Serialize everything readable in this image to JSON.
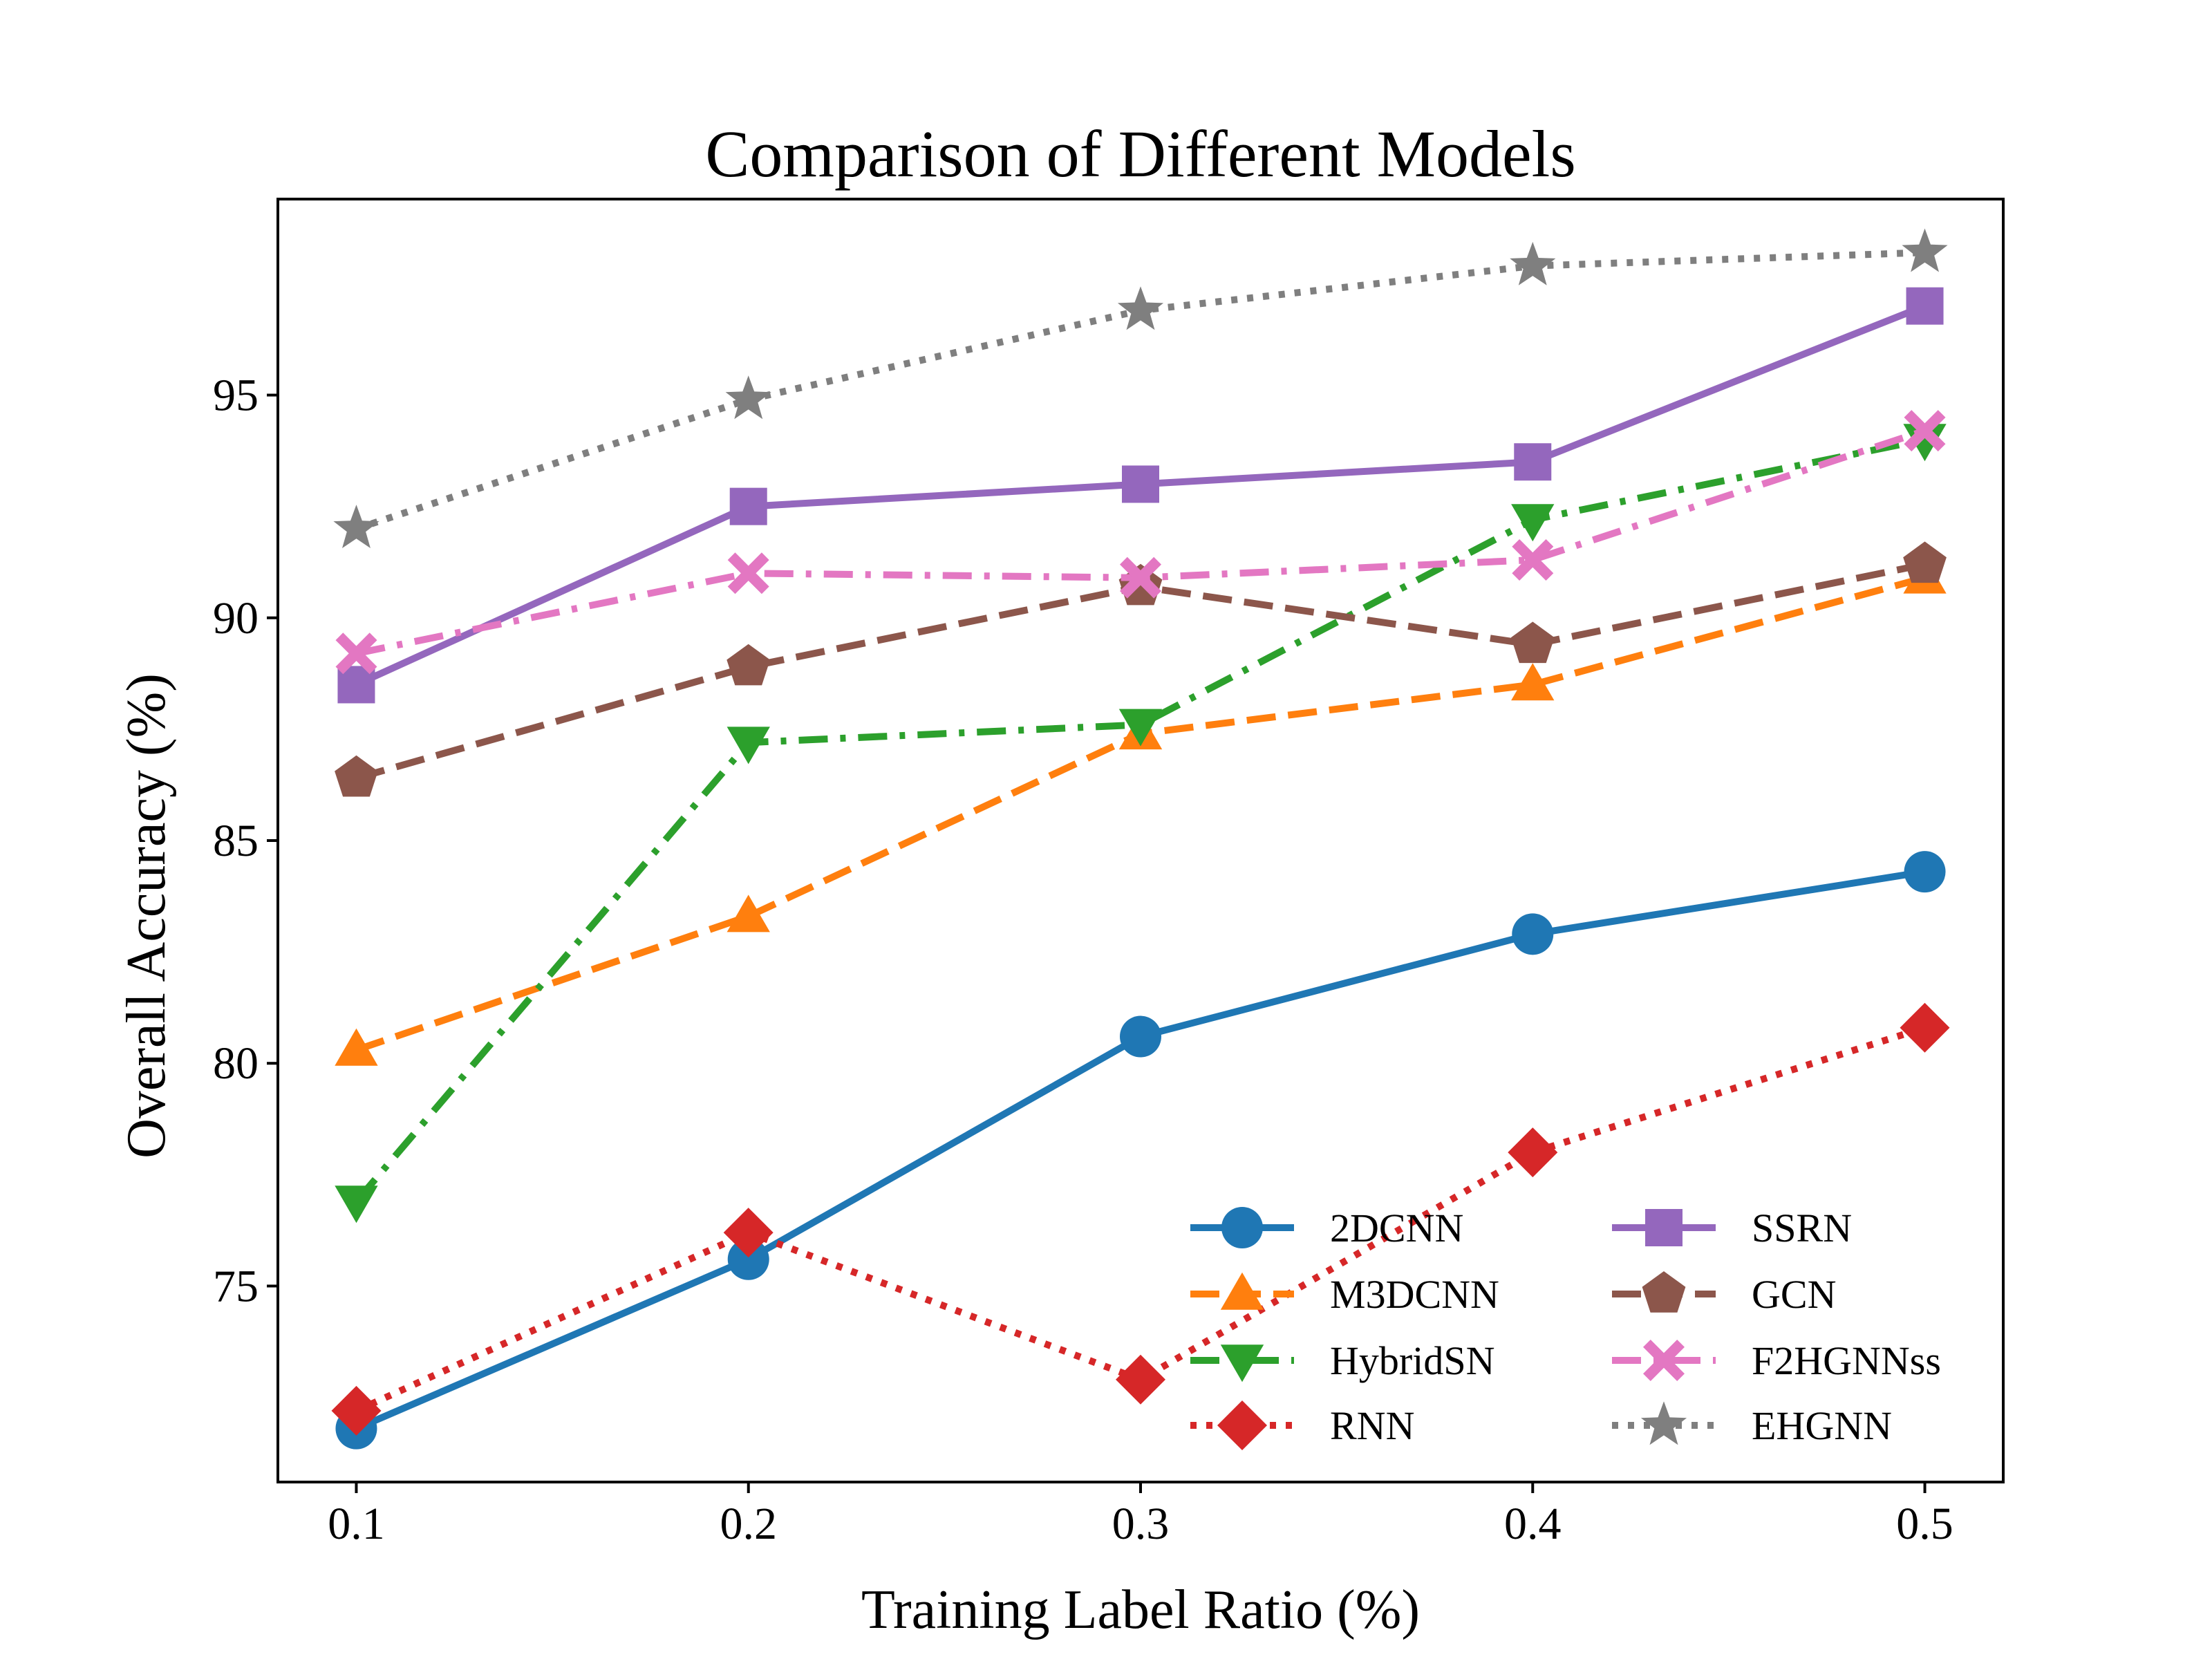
{
  "chart_data": {
    "type": "line",
    "title": "Comparison of Different Models",
    "xlabel": "Training Label Ratio (%)",
    "ylabel": "Overall Accuracy (%)",
    "x": [
      0.1,
      0.2,
      0.3,
      0.4,
      0.5
    ],
    "x_tick_labels": [
      "0.1",
      "0.2",
      "0.3",
      "0.4",
      "0.5"
    ],
    "xlim": [
      0.08,
      0.52
    ],
    "ylim": [
      70.6,
      99.4
    ],
    "y_ticks": [
      75,
      80,
      85,
      90,
      95
    ],
    "y_tick_labels": [
      "75",
      "80",
      "85",
      "90",
      "95"
    ],
    "grid": false,
    "legend_position": "lower-right",
    "legend_columns": 2,
    "series": [
      {
        "name": "2DCNN",
        "values": [
          71.8,
          75.6,
          80.6,
          82.9,
          84.3
        ],
        "color": "#1f77b4",
        "dash": "solid",
        "marker": "circle"
      },
      {
        "name": "M3DCNN",
        "values": [
          80.3,
          83.3,
          87.4,
          88.5,
          90.9
        ],
        "color": "#ff7f0e",
        "dash": "dashed",
        "marker": "triangle-up"
      },
      {
        "name": "HybridSN",
        "values": [
          76.9,
          87.2,
          87.6,
          92.2,
          94.0
        ],
        "color": "#2ca02c",
        "dash": "dashdot",
        "marker": "triangle-down"
      },
      {
        "name": "RNN",
        "values": [
          72.2,
          76.2,
          72.9,
          78.0,
          80.8
        ],
        "color": "#d62728",
        "dash": "dotted",
        "marker": "diamond"
      },
      {
        "name": "SSRN",
        "values": [
          88.5,
          92.5,
          93.0,
          93.5,
          97.0
        ],
        "color": "#9467bd",
        "dash": "solid",
        "marker": "square"
      },
      {
        "name": "GCN",
        "values": [
          86.4,
          88.9,
          90.7,
          89.4,
          91.2
        ],
        "color": "#8c564b",
        "dash": "dashed",
        "marker": "pentagon"
      },
      {
        "name": "F2HGNNss",
        "values": [
          89.2,
          91.0,
          90.9,
          91.3,
          94.2
        ],
        "color": "#e377c2",
        "dash": "dashdot",
        "marker": "x-filled"
      },
      {
        "name": "EHGNN",
        "values": [
          92.0,
          94.9,
          96.9,
          97.9,
          98.2
        ],
        "color": "#7f7f7f",
        "dash": "dotted",
        "marker": "star"
      }
    ]
  }
}
